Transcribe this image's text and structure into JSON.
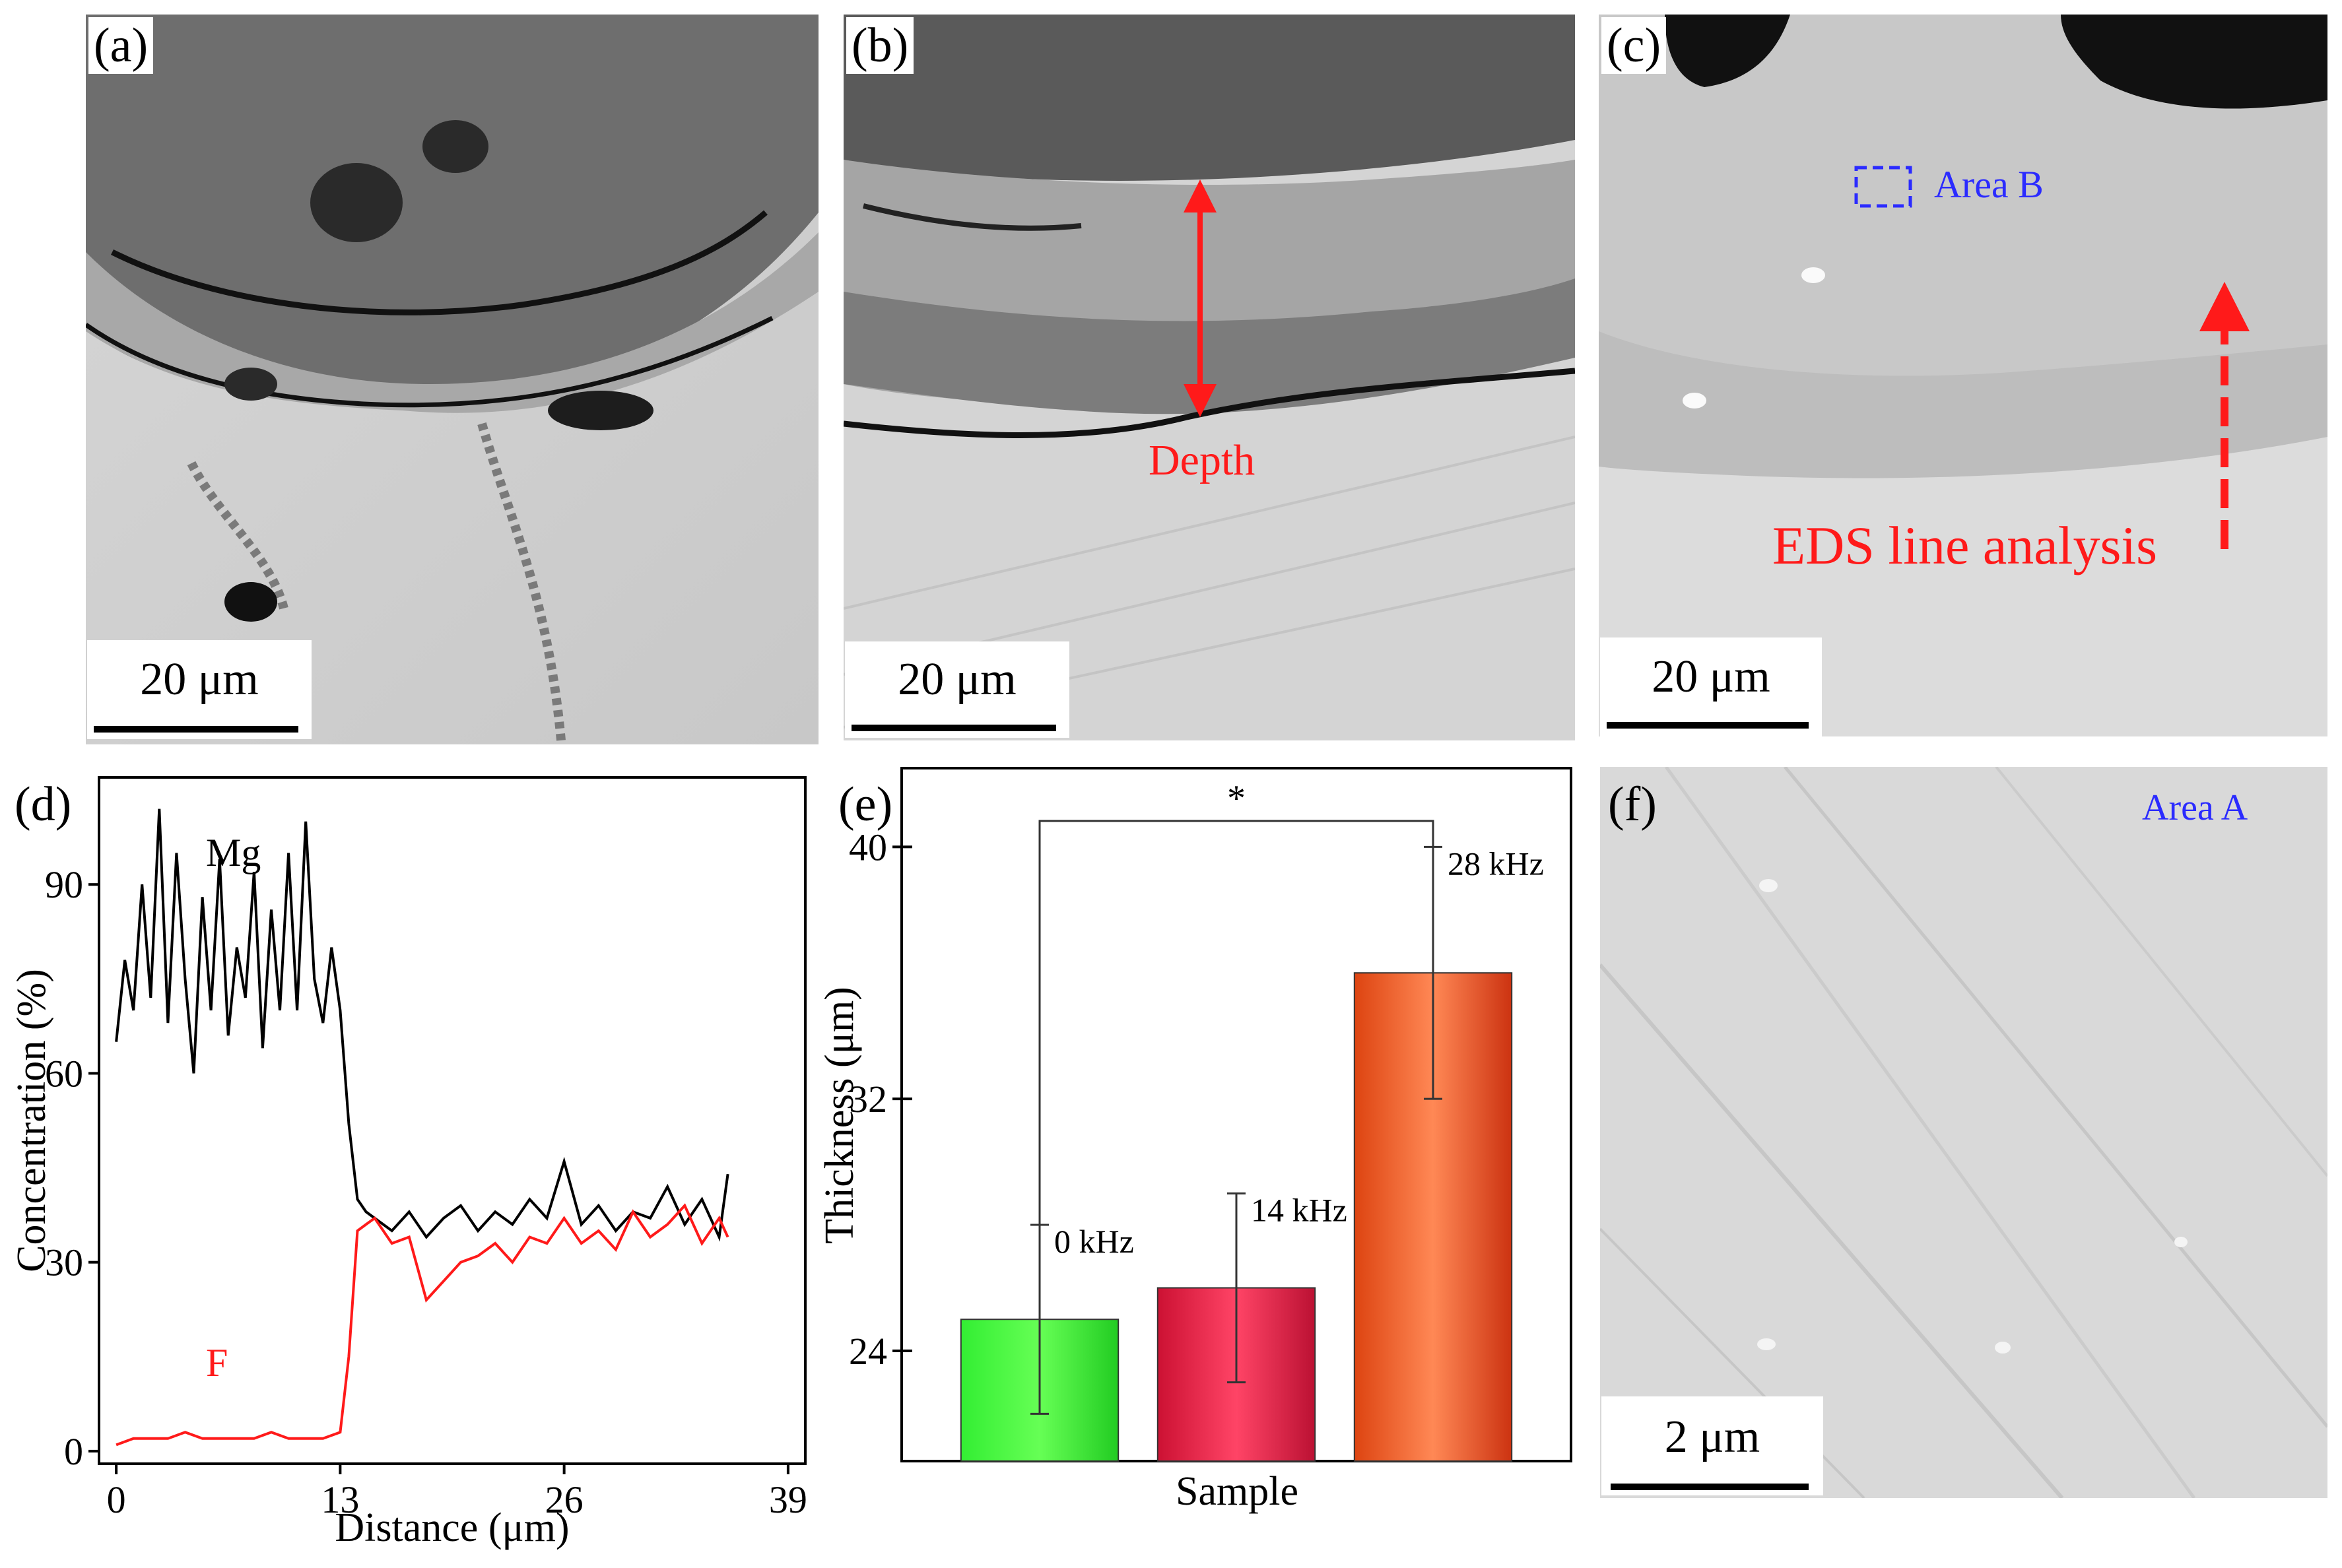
{
  "panels": {
    "a": {
      "label": "(a)",
      "scale": "20 μm"
    },
    "b": {
      "label": "(b)",
      "scale": "20 μm",
      "annotation": "Depth"
    },
    "c": {
      "label": "(c)",
      "scale": "20 μm",
      "area_label": "Area B",
      "line_label": "EDS line analysis"
    },
    "d": {
      "label": "(d)"
    },
    "e": {
      "label": "(e)"
    },
    "f": {
      "label": "(f)",
      "scale": "2 μm",
      "area_label": "Area A"
    }
  },
  "colors": {
    "mg_line": "#000000",
    "f_line": "#ff1a1a",
    "annotation_red": "#ff1a1a",
    "annotation_blue": "#2b2bff",
    "bar_0": "#22dd22",
    "bar_14": "#dd2244",
    "bar_28": "#ee5522"
  },
  "chart_data": [
    {
      "id": "d",
      "type": "line",
      "xlabel": "Distance (μm)",
      "ylabel": "Concentration (%)",
      "xlim": [
        -1,
        40
      ],
      "ylim": [
        -2,
        107
      ],
      "xticks": [
        "0",
        "13",
        "26",
        "39"
      ],
      "yticks": [
        "0",
        "30",
        "60",
        "90"
      ],
      "series": [
        {
          "name": "Mg",
          "color": "#000000",
          "x": [
            0,
            0.5,
            1,
            1.5,
            2,
            2.5,
            3,
            3.5,
            4,
            4.5,
            5,
            5.5,
            6,
            6.5,
            7,
            7.5,
            8,
            8.5,
            9,
            9.5,
            10,
            10.5,
            11,
            11.5,
            12,
            12.5,
            13,
            13.5,
            14,
            14.5,
            15,
            16,
            17,
            18,
            19,
            20,
            21,
            22,
            23,
            24,
            25,
            26,
            27,
            28,
            29,
            30,
            31,
            32,
            33,
            34,
            35,
            35.5
          ],
          "y": [
            65,
            78,
            70,
            90,
            72,
            102,
            68,
            95,
            75,
            60,
            88,
            70,
            94,
            66,
            80,
            72,
            92,
            64,
            86,
            70,
            95,
            70,
            100,
            75,
            68,
            80,
            70,
            52,
            40,
            38,
            37,
            35,
            38,
            34,
            37,
            39,
            35,
            38,
            36,
            40,
            37,
            46,
            36,
            39,
            35,
            38,
            37,
            42,
            36,
            40,
            34,
            44
          ]
        },
        {
          "name": "F",
          "color": "#ff1a1a",
          "x": [
            0,
            1,
            2,
            3,
            4,
            5,
            6,
            7,
            8,
            9,
            10,
            11,
            12,
            13,
            13.5,
            14,
            14.5,
            15,
            16,
            17,
            18,
            19,
            20,
            21,
            22,
            23,
            24,
            25,
            26,
            27,
            28,
            29,
            30,
            31,
            32,
            33,
            34,
            35,
            35.5
          ],
          "y": [
            1,
            2,
            2,
            2,
            3,
            2,
            2,
            2,
            2,
            3,
            2,
            2,
            2,
            3,
            15,
            35,
            36,
            37,
            33,
            34,
            24,
            27,
            30,
            31,
            33,
            30,
            34,
            33,
            37,
            33,
            35,
            32,
            38,
            34,
            36,
            39,
            33,
            37,
            34
          ]
        }
      ]
    },
    {
      "id": "e",
      "type": "bar",
      "xlabel": "Sample",
      "ylabel": "Thickness (μm)",
      "ylim": [
        20.5,
        42.5
      ],
      "yticks": [
        "24",
        "32",
        "40"
      ],
      "categories": [
        "0 kHz",
        "14 kHz",
        "28 kHz"
      ],
      "values": [
        25.0,
        26.0,
        36.0
      ],
      "errors": [
        3.0,
        3.0,
        4.0
      ],
      "significance": "*"
    }
  ]
}
